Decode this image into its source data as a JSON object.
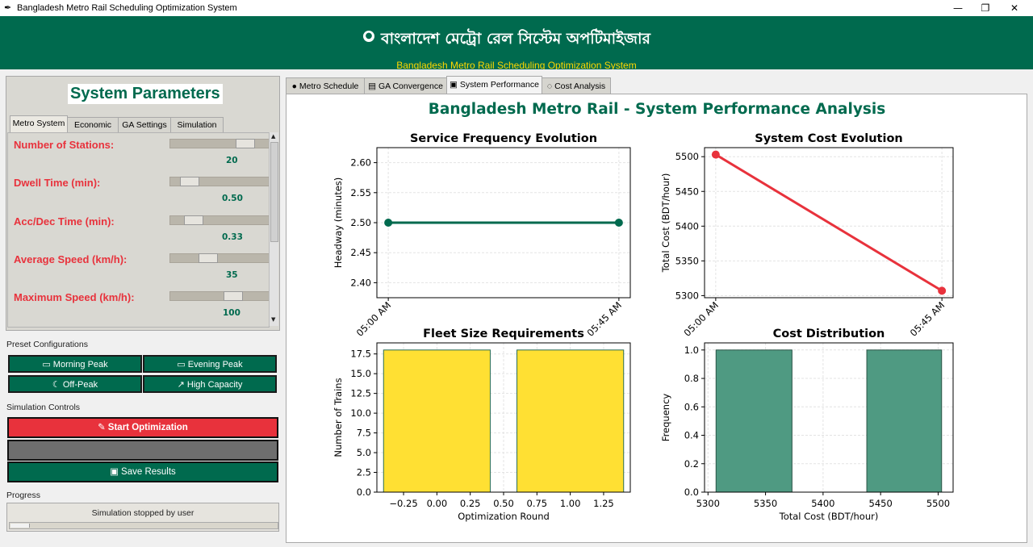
{
  "window": {
    "title": "Bangladesh Metro Rail Scheduling Optimization System",
    "app_icon": "feather-icon",
    "minimize": "—",
    "maximize": "❐",
    "close": "✕"
  },
  "banner": {
    "icon": "●",
    "title_bn": "বাংলাদেশ মেট্রো রেল সিস্টেম অপটিমাইজার",
    "subtitle": "Bangladesh Metro Rail Scheduling Optimization System",
    "bg_color": "#006a4e",
    "subtitle_color": "#ffd700"
  },
  "left": {
    "title": "System Parameters",
    "tabs": [
      "Metro System",
      "Economic",
      "GA Settings",
      "Simulation"
    ],
    "active_tab": "Metro System",
    "params": [
      {
        "label": "Number of Stations:",
        "value": "20",
        "level": 0.8
      },
      {
        "label": "Dwell Time (min):",
        "value": "0.50",
        "level": 0.12
      },
      {
        "label": "Acc/Dec Time (min):",
        "value": "0.33",
        "level": 0.17
      },
      {
        "label": "Average Speed (km/h):",
        "value": "35",
        "level": 0.35
      },
      {
        "label": "Maximum Speed (km/h):",
        "value": "100",
        "level": 0.65
      }
    ],
    "preset_heading": "Preset Configurations",
    "presets": [
      {
        "icon": "▭",
        "label": "Morning Peak"
      },
      {
        "icon": "▭",
        "label": "Evening Peak"
      },
      {
        "icon": "☾",
        "label": "Off-Peak"
      },
      {
        "icon": "↗",
        "label": "High Capacity"
      }
    ],
    "sim_heading": "Simulation Controls",
    "start_btn": {
      "icon": "✎",
      "label": "Start Optimization",
      "color": "#e8323c"
    },
    "stop_btn": {
      "icon": "",
      "label": "",
      "color": "#6e6e6e"
    },
    "save_btn": {
      "icon": "▣",
      "label": "Save Results",
      "color": "#006a4e"
    },
    "progress_heading": "Progress",
    "progress_text": "Simulation stopped by user",
    "progress_value": 0.07
  },
  "right": {
    "tabs": [
      {
        "icon": "●",
        "label": "Metro Schedule"
      },
      {
        "icon": "▤",
        "label": "GA Convergence"
      },
      {
        "icon": "▣",
        "label": "System Performance"
      },
      {
        "icon": "◌",
        "label": "Cost Analysis"
      }
    ],
    "active_tab": "System Performance",
    "suptitle": "Bangladesh Metro Rail - System Performance Analysis"
  },
  "chart_data": [
    {
      "type": "line",
      "title": "Service Frequency Evolution",
      "xlabel": "",
      "ylabel": "Headway (minutes)",
      "categories": [
        "05:00 AM",
        "05:45 AM"
      ],
      "values": [
        2.5,
        2.5
      ],
      "ylim": [
        2.375,
        2.625
      ],
      "yticks": [
        "2.40",
        "2.45",
        "2.50",
        "2.55",
        "2.60"
      ],
      "color": "#006a4e",
      "grid": true
    },
    {
      "type": "line",
      "title": "System Cost Evolution",
      "xlabel": "",
      "ylabel": "Total Cost (BDT/hour)",
      "categories": [
        "05:00 AM",
        "05:45 AM"
      ],
      "values": [
        5503,
        5307
      ],
      "ylim": [
        5297,
        5513
      ],
      "yticks": [
        "5300",
        "5350",
        "5400",
        "5450",
        "5500"
      ],
      "color": "#e8323c",
      "grid": true
    },
    {
      "type": "bar",
      "title": "Fleet Size Requirements",
      "xlabel": "Optimization Round",
      "ylabel": "Number of Trains",
      "x": [
        0,
        1
      ],
      "values": [
        18,
        18
      ],
      "bar_width": 0.8,
      "xlim": [
        -0.45,
        1.45
      ],
      "ylim": [
        0,
        18.9
      ],
      "xticks": [
        "−0.25",
        "0.00",
        "0.25",
        "0.50",
        "0.75",
        "1.00",
        "1.25"
      ],
      "yticks": [
        "0.0",
        "2.5",
        "5.0",
        "7.5",
        "10.0",
        "12.5",
        "15.0",
        "17.5"
      ],
      "color": "#ffe033",
      "grid": true
    },
    {
      "type": "bar",
      "title": "Cost Distribution",
      "xlabel": "Total Cost (BDT/hour)",
      "ylabel": "Frequency",
      "bins": [
        [
          5307,
          5373
        ],
        [
          5438,
          5503
        ]
      ],
      "values": [
        1.0,
        1.0
      ],
      "xlim": [
        5297,
        5513
      ],
      "ylim": [
        0,
        1.05
      ],
      "xticks": [
        "5300",
        "5350",
        "5400",
        "5450",
        "5500"
      ],
      "yticks": [
        "0.0",
        "0.2",
        "0.4",
        "0.6",
        "0.8",
        "1.0"
      ],
      "color": "#4f9a82",
      "grid": true
    }
  ]
}
